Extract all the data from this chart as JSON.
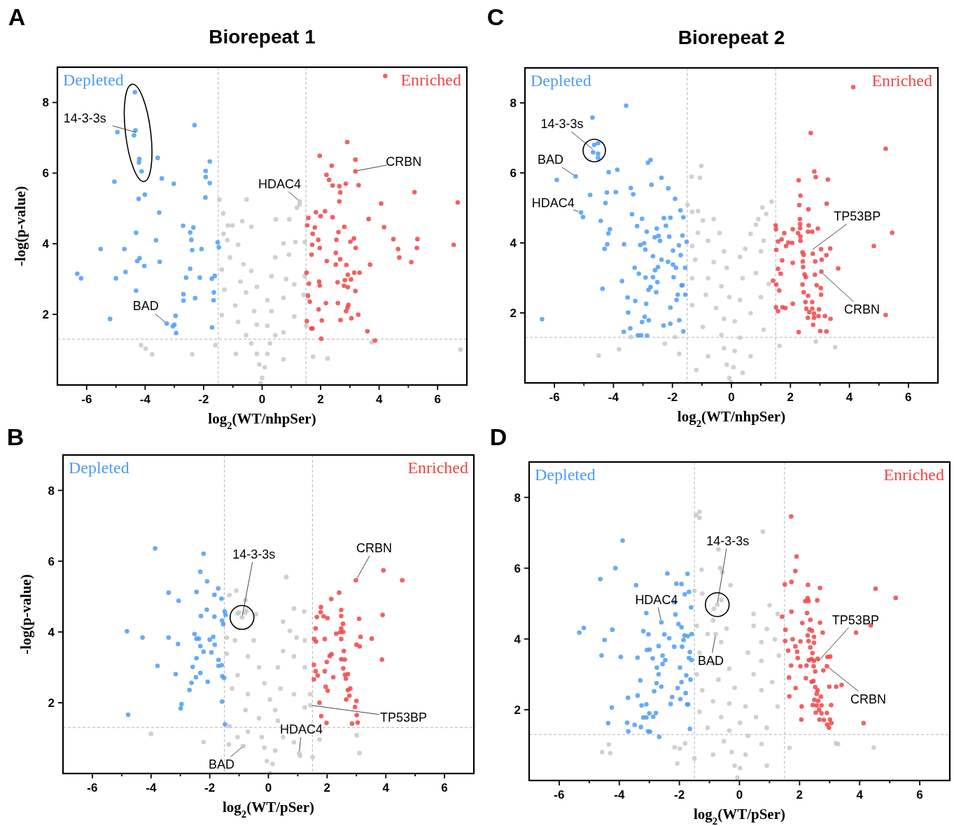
{
  "chart_data": [
    {
      "type": "scatter",
      "title": "Biorepeat 1",
      "xlabel": "log$_{2}$(WT/nhpSer)",
      "ylabel": "-log(p-value)",
      "xlim": [
        -7,
        7
      ],
      "ylim": [
        0,
        9
      ],
      "xticks": [
        -6,
        {
          "value": -5,
          "label": null
        },
        -4,
        {
          "value": -3,
          "label": null
        },
        -2,
        {
          "value": -1,
          "label": null
        },
        0,
        {
          "value": 1,
          "label": null
        },
        2,
        {
          "value": 3,
          "label": null
        },
        4,
        {
          "value": 5,
          "label": null
        },
        6
      ],
      "yticks": [
        2,
        4,
        6,
        8
      ],
      "marker": "circle",
      "ref_lines": [
        {
          "axis": "x",
          "value": -1.5,
          "color": "#b4b4b4",
          "line_style": "dashed"
        },
        {
          "axis": "x",
          "value": 1.5,
          "color": "#b4b4b4",
          "line_style": "dashed"
        },
        {
          "axis": "y",
          "value": 1.3,
          "color": "#b4b4b4",
          "line_style": "dashed"
        }
      ],
      "annotations": [
        "A",
        {
          "text": "14-3-3s",
          "x": -4.24,
          "y": 7.14
        },
        {
          "text": "HDAC4",
          "x": 1.29,
          "y": 5.2
        },
        {
          "text": "CRBN",
          "x": 3.19,
          "y": 6.06
        },
        {
          "text": "BAD",
          "x": -3.26,
          "y": 1.74
        }
      ],
      "series": [
        {
          "color": "#c8c8c8",
          "x": [
            -1.46,
            -0.53,
            1.28,
            1.19,
            -1.33,
            0.47,
            0.93,
            -0.68,
            -1.17,
            -1.02,
            -0.37,
            -1.32,
            -1.19,
            -0.82,
            0.73,
            1.14,
            1.46,
            0.92,
            -1.1,
            -0.64,
            0.45,
            -0.37,
            -1.38,
            0.32,
            0.82,
            1.46,
            -0.74,
            -0.18,
            -1.29,
            -0.55,
            1.42,
            0.18,
            0.73,
            -0.92,
            -0.27,
            0.32,
            -1.38,
            1.1,
            -0.82,
            -0.18,
            0.18,
            0.73,
            -0.55,
            -0.37,
            0.27,
            -0.18,
            0.18,
            -0.1,
            0.09,
            0.0,
            -0.05,
            -0.9,
            0.73,
            -4.14,
            -3.98,
            -3.76,
            -2.39,
            -1.6,
            1.74,
            2.24,
            3.75,
            6.78,
            1.51,
            0.45,
            1.1,
            1.29
          ],
          "values": [
            5.25,
            5.25,
            5.11,
            5.02,
            4.86,
            4.69,
            4.69,
            4.64,
            4.52,
            4.52,
            4.48,
            4.28,
            4.1,
            3.97,
            4.01,
            4.05,
            4.05,
            3.69,
            3.61,
            3.42,
            3.61,
            3.23,
            3.27,
            3.08,
            3.0,
            3.08,
            2.93,
            2.78,
            2.7,
            2.62,
            2.55,
            2.4,
            2.47,
            2.25,
            2.09,
            2.09,
            1.98,
            1.94,
            1.79,
            1.71,
            1.68,
            1.49,
            1.41,
            1.18,
            1.18,
            0.88,
            0.88,
            0.58,
            0.5,
            0.2,
            0.05,
            0.88,
            0.73,
            1.13,
            1.03,
            0.87,
            0.87,
            1.13,
            0.8,
            0.75,
            1.21,
            1.0,
            1.68,
            1.41,
            2.85,
            5.2
          ]
        },
        {
          "name": "Depleted",
          "color": "#4d9cf7",
          "x": [
            -4.35,
            -4.33,
            -4.38,
            -4.95,
            -2.31,
            -4.2,
            -4.21,
            -4.12,
            -3.57,
            -5.05,
            -3.43,
            -3.02,
            -1.79,
            -1.93,
            -1.93,
            -1.79,
            -1.94,
            -4.22,
            -4.01,
            -3.52,
            -2.7,
            -2.35,
            -2.46,
            -2.42,
            -4.31,
            -3.63,
            -5.52,
            -4.71,
            -2.39,
            -2.07,
            -1.52,
            -1.48,
            -4.27,
            -4.19,
            -4.03,
            -3.5,
            -6.32,
            -6.19,
            -5.0,
            -4.67,
            -2.6,
            -2.46,
            -2.13,
            -1.72,
            -1.62,
            -4.31,
            -2.69,
            -2.69,
            -2.29,
            -1.65,
            -1.66,
            -5.2,
            -2.96,
            -3.26,
            -3.05,
            -3.0,
            -2.94,
            -1.71
          ],
          "values": [
            8.29,
            7.21,
            7.07,
            7.16,
            7.36,
            6.4,
            6.3,
            6.05,
            6.43,
            5.76,
            5.85,
            5.7,
            6.33,
            6.06,
            5.89,
            5.72,
            5.31,
            5.27,
            5.39,
            4.88,
            4.51,
            4.46,
            4.32,
            4.11,
            4.31,
            4.1,
            3.85,
            3.85,
            3.82,
            3.85,
            4.04,
            3.9,
            3.51,
            3.59,
            3.37,
            3.49,
            3.15,
            3.02,
            3.02,
            3.2,
            3.04,
            3.29,
            3.04,
            3.01,
            3.09,
            2.67,
            2.57,
            2.39,
            2.46,
            2.62,
            2.4,
            1.87,
            1.96,
            1.74,
            1.66,
            1.71,
            1.47,
            1.63
          ]
        },
        {
          "name": "Enriched",
          "color": "#f04545",
          "x": [
            4.21,
            2.91,
            1.97,
            3.19,
            2.38,
            3.19,
            2.2,
            2.29,
            2.41,
            2.86,
            2.64,
            3.3,
            2.67,
            2.64,
            5.21,
            4.07,
            6.69,
            1.84,
            2.15,
            2.0,
            1.58,
            2.41,
            3.64,
            1.54,
            1.8,
            2.81,
            4.17,
            1.73,
            2.61,
            2.54,
            1.92,
            3.14,
            3.02,
            4.49,
            5.31,
            1.71,
            1.97,
            3.2,
            4.65,
            5.29,
            6.55,
            1.69,
            2.52,
            2.21,
            2.52,
            2.67,
            2.88,
            3.69,
            4.69,
            5.1,
            1.52,
            3.15,
            3.33,
            2.93,
            1.95,
            2.83,
            3.04,
            1.6,
            1.97,
            2.58,
            2.8,
            2.93,
            3.19,
            1.57,
            1.63,
            2.18,
            2.59,
            2.95,
            2.92,
            1.93,
            2.87,
            3.29,
            3.05,
            1.53,
            2.04,
            2.68,
            1.68,
            1.72,
            3.6,
            2.02,
            3.86
          ],
          "values": [
            8.75,
            6.88,
            6.49,
            6.38,
            6.21,
            6.05,
            5.95,
            5.81,
            5.65,
            5.7,
            5.63,
            5.66,
            5.45,
            5.2,
            5.46,
            5.14,
            5.17,
            4.89,
            4.92,
            4.78,
            4.73,
            4.75,
            4.7,
            4.52,
            4.46,
            4.48,
            4.47,
            4.28,
            4.33,
            4.11,
            4.11,
            4.15,
            4.06,
            4.13,
            4.13,
            3.97,
            3.88,
            3.88,
            3.85,
            3.88,
            3.97,
            3.69,
            3.74,
            3.51,
            3.41,
            3.56,
            3.4,
            3.41,
            3.61,
            3.48,
            3.18,
            3.18,
            3.18,
            3.12,
            2.93,
            2.97,
            2.99,
            2.87,
            2.82,
            2.91,
            2.81,
            2.77,
            2.66,
            2.53,
            2.36,
            2.32,
            2.32,
            2.27,
            2.19,
            2.14,
            2.09,
            1.99,
            1.89,
            1.81,
            1.83,
            1.84,
            1.6,
            1.6,
            1.52,
            1.31,
            1.26
          ]
        }
      ]
    },
    {
      "type": "scatter",
      "title": "Biorepeat 2",
      "xlabel": "log$_{2}$(WT/nhpSer)",
      "xlim": [
        -7,
        7
      ],
      "ylim": [
        0,
        9
      ],
      "xticks": [
        -6,
        {
          "value": -5,
          "label": null
        },
        -4,
        {
          "value": -3,
          "label": null
        },
        -2,
        {
          "value": -1,
          "label": null
        },
        0,
        {
          "value": 1,
          "label": null
        },
        2,
        {
          "value": 3,
          "label": null
        },
        4,
        {
          "value": 5,
          "label": null
        },
        6
      ],
      "yticks": [
        2,
        4,
        6,
        8
      ],
      "marker": "circle",
      "ref_lines": [
        {
          "axis": "x",
          "value": -1.5,
          "color": "#b4b4b4",
          "line_style": "dashed"
        },
        {
          "axis": "x",
          "value": 1.5,
          "color": "#b4b4b4",
          "line_style": "dashed"
        },
        {
          "axis": "y",
          "value": 1.3,
          "color": "#b4b4b4",
          "line_style": "dashed"
        }
      ],
      "annotations": [
        "C",
        {
          "text": "14-3-3s",
          "x": -4.65,
          "y": 6.64
        },
        {
          "text": "BAD",
          "x": -5.28,
          "y": 5.9
        },
        {
          "text": "HDAC4",
          "x": -5.12,
          "y": 4.88
        },
        {
          "text": "TP53BP",
          "x": 2.7,
          "y": 3.78
        },
        {
          "text": "CRBN",
          "x": 3.05,
          "y": 3.16
        }
      ],
      "series": [
        {
          "color": "#c8c8c8",
          "x": [
            -1.02,
            -1.35,
            -1.07,
            -1.49,
            -1.33,
            -1.13,
            1.36,
            1.05,
            1.18,
            -0.97,
            -0.6,
            0.91,
            0.83,
            -0.4,
            -1.14,
            0.65,
            1.09,
            -0.79,
            -1.33,
            -0.25,
            0.47,
            0.29,
            1.0,
            -1.23,
            -0.6,
            -0.16,
            -1.33,
            0.38,
            0.83,
            -0.79,
            1.27,
            -0.34,
            -0.87,
            -0.07,
            0.29,
            1.0,
            -1.33,
            -0.52,
            0.65,
            -0.25,
            0.11,
            -0.97,
            1.09,
            -0.34,
            0.29,
            -0.25,
            0.11,
            -0.79,
            0.65,
            -0.16,
            0.07,
            -0.07,
            -0.02,
            -1.19,
            0.38,
            -4.5,
            -3.81,
            -2.26,
            -1.77,
            -1.91,
            2.86,
            3.52,
            1.63,
            -3.41
          ],
          "values": [
            6.2,
            5.89,
            5.86,
            5.09,
            4.89,
            4.91,
            5.18,
            5.01,
            4.83,
            4.64,
            4.68,
            4.68,
            4.52,
            4.28,
            4.29,
            4.26,
            4.06,
            4.06,
            3.91,
            3.76,
            3.83,
            3.6,
            3.76,
            3.52,
            3.45,
            3.29,
            2.99,
            2.99,
            3.14,
            2.99,
            2.83,
            2.76,
            2.52,
            2.45,
            2.37,
            2.45,
            2.22,
            2.14,
            1.99,
            1.83,
            1.76,
            1.6,
            1.52,
            1.37,
            1.29,
            0.99,
            0.91,
            0.76,
            0.76,
            0.52,
            0.45,
            0.14,
            0.02,
            0.37,
            0.29,
            0.78,
            0.96,
            1.12,
            0.83,
            1.31,
            1.18,
            1.02,
            1.06,
            1.31
          ]
        },
        {
          "name": "Depleted",
          "color": "#4d9cf7",
          "x": [
            -3.57,
            -4.71,
            -4.65,
            -4.52,
            -4.69,
            -4.52,
            -4.52,
            -2.83,
            -2.74,
            -4.16,
            -3.87,
            -5.92,
            -5.28,
            -2.37,
            -2.71,
            -3.41,
            -2.14,
            -4.79,
            -4.22,
            -3.92,
            -3.33,
            -1.91,
            -4.27,
            -5.1,
            -5.03,
            -4.43,
            -3.37,
            -3.03,
            -2.29,
            -2.07,
            -1.73,
            -1.63,
            -3.2,
            -2.22,
            -2.53,
            -4.12,
            -4.17,
            -2.87,
            -2.47,
            -2.6,
            -2.11,
            -1.66,
            -4.21,
            -3.64,
            -4.3,
            -3.09,
            -2.96,
            -2.92,
            -2.42,
            -1.78,
            -1.98,
            -1.72,
            -1.52,
            -2.66,
            -2.37,
            -2.15,
            -1.98,
            -1.88,
            -1.57,
            -3.28,
            -2.59,
            -2.49,
            -3.14,
            -2.91,
            -2.66,
            -1.96,
            -3.71,
            -2.51,
            -2.74,
            -1.69,
            -1.66,
            -4.37,
            -2.81,
            -2.55,
            -1.82,
            -1.56,
            -3.52,
            -1.86,
            -3.26,
            -2.89,
            -2.07,
            -3.5,
            -2.94,
            -6.42,
            -3.03,
            -2.8,
            -2.3,
            -2.07,
            -1.77,
            -3.43,
            -3.65,
            -1.63,
            -3.17,
            -3.06,
            -2.86
          ],
          "values": [
            7.92,
            7.58,
            6.8,
            6.85,
            6.59,
            6.55,
            6.43,
            6.29,
            6.37,
            6.02,
            6.09,
            5.8,
            5.9,
            5.86,
            5.66,
            5.57,
            5.56,
            5.37,
            5.44,
            5.45,
            5.39,
            5.26,
            5.14,
            4.87,
            4.74,
            4.63,
            4.82,
            4.69,
            4.71,
            4.72,
            4.93,
            4.73,
            4.48,
            4.49,
            4.41,
            4.39,
            4.27,
            4.32,
            4.2,
            4.16,
            4.18,
            4.21,
            3.96,
            3.96,
            3.83,
            3.94,
            3.99,
            3.81,
            4.06,
            3.93,
            3.78,
            3.65,
            4.03,
            3.62,
            3.52,
            3.46,
            3.38,
            3.29,
            3.29,
            3.29,
            3.22,
            3.31,
            3.12,
            3.01,
            3.02,
            3.02,
            2.91,
            2.88,
            2.74,
            2.79,
            2.79,
            2.69,
            2.66,
            2.59,
            2.52,
            2.52,
            2.44,
            2.37,
            2.34,
            2.26,
            2.15,
            2.01,
            1.89,
            1.82,
            1.74,
            1.79,
            1.64,
            1.69,
            1.79,
            1.56,
            1.46,
            1.47,
            1.36,
            1.36,
            1.35
          ]
        },
        {
          "name": "Enriched",
          "color": "#f04545",
          "x": [
            4.13,
            2.69,
            5.23,
            2.81,
            2.86,
            2.28,
            3.27,
            2.34,
            2.61,
            3.23,
            2.3,
            2.32,
            2.33,
            2.33,
            2.62,
            2.93,
            1.5,
            1.51,
            1.79,
            2.08,
            2.6,
            2.74,
            5.45,
            2.26,
            2.34,
            2.34,
            1.58,
            1.7,
            1.85,
            1.93,
            2.06,
            1.52,
            2.41,
            2.45,
            2.76,
            3.04,
            3.35,
            3.22,
            4.83,
            1.72,
            2.08,
            2.42,
            2.84,
            3.06,
            1.58,
            1.67,
            2.43,
            2.48,
            2.83,
            3.05,
            3.62,
            1.41,
            1.52,
            2.41,
            2.52,
            2.89,
            3.03,
            1.62,
            2.45,
            2.6,
            3.04,
            2.51,
            2.74,
            2.08,
            1.51,
            1.73,
            1.83,
            2.54,
            2.74,
            2.97,
            1.58,
            2.64,
            2.8,
            2.95,
            2.59,
            2.8,
            3.17,
            3.36,
            5.23,
            2.77,
            2.28,
            3.01,
            3.22
          ],
          "values": [
            8.45,
            7.14,
            6.69,
            6.04,
            5.88,
            5.79,
            5.81,
            5.35,
            4.96,
            5.12,
            5.08,
            4.68,
            4.54,
            4.42,
            4.5,
            4.41,
            4.5,
            4.39,
            4.28,
            4.39,
            4.32,
            4.32,
            4.29,
            4.28,
            4.18,
            4.06,
            4.04,
            4.1,
            3.91,
            4.01,
            4.0,
            3.8,
            3.73,
            3.66,
            3.69,
            3.82,
            3.84,
            3.65,
            3.91,
            3.5,
            3.43,
            3.47,
            3.47,
            3.52,
            3.26,
            3.12,
            3.31,
            3.1,
            3.09,
            3.18,
            3.27,
            2.92,
            2.81,
            2.81,
            3.02,
            2.79,
            2.71,
            2.64,
            2.59,
            2.49,
            2.52,
            2.31,
            2.31,
            2.26,
            2.16,
            2.16,
            2.14,
            2.12,
            2.12,
            2.1,
            2.05,
            2.02,
            1.98,
            1.91,
            1.86,
            1.86,
            1.91,
            1.83,
            1.94,
            1.66,
            1.45,
            1.48,
            1.47
          ]
        }
      ]
    },
    {
      "type": "scatter",
      "xlabel": "log$_{2}$(WT/pSer)",
      "ylabel": "-log(p-value)",
      "xlim": [
        -7,
        7
      ],
      "ylim": [
        0,
        9
      ],
      "xticks": [
        -6,
        {
          "value": -5,
          "label": null
        },
        -4,
        {
          "value": -3,
          "label": null
        },
        -2,
        {
          "value": -1,
          "label": null
        },
        0,
        {
          "value": 1,
          "label": null
        },
        2,
        {
          "value": 3,
          "label": null
        },
        4,
        {
          "value": 5,
          "label": null
        },
        6
      ],
      "yticks": [
        2,
        4,
        6,
        8
      ],
      "marker": "circle",
      "ref_lines": [
        {
          "axis": "x",
          "value": -1.5,
          "color": "#b4b4b4",
          "line_style": "dashed"
        },
        {
          "axis": "x",
          "value": 1.5,
          "color": "#b4b4b4",
          "line_style": "dashed"
        },
        {
          "axis": "y",
          "value": 1.3,
          "color": "#b4b4b4",
          "line_style": "dashed"
        }
      ],
      "annotations": [
        "B",
        {
          "text": "14-3-3s",
          "x": -0.9,
          "y": 4.41
        },
        {
          "text": "CRBN",
          "x": 2.98,
          "y": 5.46
        },
        {
          "text": "TP53BP",
          "x": 1.43,
          "y": 1.93
        },
        {
          "text": "HDAC4",
          "x": 1.05,
          "y": 0.57
        },
        {
          "text": "BAD",
          "x": -0.86,
          "y": 0.77
        }
      ],
      "series": [
        {
          "color": "#c8c8c8",
          "x": [
            0.61,
            -1.09,
            -1.33,
            -0.78,
            -1.05,
            -0.8,
            -0.43,
            0.87,
            1.22,
            0.5,
            0.73,
            -1.42,
            -1.14,
            -0.5,
            1.24,
            0.96,
            -0.7,
            0.5,
            0.87,
            -1.42,
            -0.32,
            0.32,
            -1.05,
            1.24,
            -0.14,
            -1.24,
            -0.7,
            0.41,
            0.87,
            1.42,
            0.05,
            -0.78,
            0.23,
            1.24,
            -0.32,
            0.32,
            -1.05,
            -0.7,
            -0.23,
            0.5,
            -0.14,
            0.23,
            0.87,
            -0.87,
            1.08,
            -0.05,
            0.14,
            0.05,
            -4.0,
            -2.21,
            -1.35,
            1.51,
            3.01,
            3.1,
            1.74,
            -1.33,
            1.43,
            -0.9,
            -1.0,
            -0.75,
            1.05,
            -0.86
          ],
          "values": [
            5.55,
            5.17,
            5.04,
            4.9,
            4.52,
            4.54,
            4.5,
            4.66,
            4.58,
            4.29,
            4.03,
            3.84,
            3.76,
            3.76,
            3.76,
            3.84,
            3.31,
            3.46,
            3.31,
            3.38,
            3.0,
            3.0,
            2.78,
            3.0,
            2.55,
            2.4,
            2.24,
            2.4,
            2.24,
            2.24,
            2.09,
            1.79,
            1.79,
            1.87,
            1.56,
            1.49,
            1.03,
            1.18,
            1.03,
            1.03,
            0.73,
            0.65,
            0.88,
            0.77,
            0.5,
            0.35,
            0.27,
            0.01,
            1.12,
            0.89,
            0.82,
            0.46,
            1.08,
            0.58,
            0.96,
            1.34,
            1.93,
            4.41,
            4.55,
            4.6,
            0.57,
            0.77
          ]
        },
        {
          "name": "Depleted",
          "color": "#4d9cf7",
          "x": [
            -3.86,
            -2.21,
            -2.32,
            -2.09,
            -3.4,
            -2.45,
            -1.71,
            -1.84,
            -1.6,
            -3.06,
            -2.1,
            -1.49,
            -1.46,
            -2.3,
            -1.84,
            -1.58,
            -1.54,
            -4.82,
            -4.29,
            -3.4,
            -2.52,
            -2.45,
            -2.37,
            -2.0,
            -1.88,
            -3.08,
            -2.32,
            -1.83,
            -2.21,
            -1.94,
            -1.7,
            -1.59,
            -1.7,
            -2.45,
            -3.78,
            -2.58,
            -3.16,
            -2.32,
            -2.47,
            -1.57,
            -1.51,
            -2.07,
            -2.62,
            -2.69,
            -1.58,
            -2.96,
            -2.99,
            -4.78,
            -1.48
          ],
          "values": [
            6.36,
            6.21,
            5.7,
            5.43,
            5.11,
            5.13,
            5.23,
            5.05,
            4.94,
            4.88,
            4.63,
            4.58,
            4.48,
            4.45,
            4.43,
            4.32,
            4.22,
            4.02,
            3.84,
            3.84,
            3.94,
            3.81,
            3.81,
            3.78,
            3.86,
            3.66,
            3.6,
            3.64,
            3.44,
            3.42,
            3.21,
            3.06,
            3.04,
            3.26,
            3.04,
            3.01,
            2.81,
            2.84,
            2.72,
            2.75,
            2.7,
            2.59,
            2.56,
            2.36,
            2.03,
            1.96,
            1.84,
            1.66,
            1.39
          ]
        },
        {
          "name": "Enriched",
          "color": "#f04545",
          "x": [
            3.92,
            4.56,
            2.98,
            2.41,
            2.14,
            2.48,
            2.48,
            1.79,
            1.78,
            1.65,
            1.88,
            2.01,
            3.89,
            3.09,
            2.54,
            1.61,
            2.48,
            2.45,
            2.55,
            2.31,
            3.14,
            3.52,
            1.92,
            1.56,
            1.62,
            2.48,
            3.0,
            3.11,
            2.57,
            2.15,
            2.09,
            1.99,
            2.48,
            2.6,
            3.87,
            1.55,
            1.61,
            1.92,
            2.55,
            2.61,
            2.71,
            2.64,
            2.21,
            1.55,
            1.68,
            1.95,
            2.71,
            2.79,
            2.02,
            2.76,
            2.65,
            3.0,
            1.74,
            2.95,
            3.01,
            1.8,
            1.98,
            2.85,
            3.04
          ],
          "values": [
            5.74,
            5.46,
            5.46,
            5.11,
            4.93,
            4.62,
            4.45,
            4.7,
            4.56,
            4.42,
            4.44,
            4.39,
            4.48,
            4.37,
            4.23,
            4.1,
            4.1,
            3.99,
            4.0,
            3.95,
            3.86,
            3.81,
            3.8,
            3.8,
            3.73,
            3.8,
            3.64,
            3.59,
            3.46,
            3.37,
            3.32,
            3.15,
            3.23,
            3.22,
            3.22,
            3.07,
            2.89,
            2.89,
            2.97,
            2.79,
            2.81,
            2.68,
            2.72,
            2.66,
            2.77,
            2.45,
            2.36,
            2.4,
            2.34,
            2.2,
            2.09,
            2.05,
            2.0,
            1.88,
            1.65,
            1.62,
            1.43,
            1.41,
            1.44
          ]
        }
      ]
    },
    {
      "type": "scatter",
      "xlabel": "log$_{2}$(WT/pSer)",
      "xlim": [
        -7,
        7
      ],
      "ylim": [
        0,
        9
      ],
      "xticks": [
        -6,
        {
          "value": -5,
          "label": null
        },
        -4,
        {
          "value": -3,
          "label": null
        },
        -2,
        {
          "value": -1,
          "label": null
        },
        0,
        {
          "value": 1,
          "label": null
        },
        2,
        {
          "value": 3,
          "label": null
        },
        4,
        {
          "value": 5,
          "label": null
        },
        6
      ],
      "yticks": [
        2,
        4,
        6,
        8
      ],
      "marker": "circle",
      "ref_lines": [
        {
          "axis": "x",
          "value": -1.5,
          "color": "#b4b4b4",
          "line_style": "dashed"
        },
        {
          "axis": "x",
          "value": 1.5,
          "color": "#b4b4b4",
          "line_style": "dashed"
        },
        {
          "axis": "y",
          "value": 1.3,
          "color": "#b4b4b4",
          "line_style": "dashed"
        }
      ],
      "annotations": [
        "D",
        {
          "text": "14-3-3s",
          "x": -0.74,
          "y": 4.97
        },
        {
          "text": "HDAC4",
          "x": -2.6,
          "y": 4.48
        },
        {
          "text": "BAD",
          "x": -0.79,
          "y": 4.14
        },
        {
          "text": "TP53BP",
          "x": 2.56,
          "y": 3.31
        },
        {
          "text": "CRBN",
          "x": 2.91,
          "y": 3.23
        }
      ],
      "series": [
        {
          "color": "#c8c8c8",
          "x": [
            -1.44,
            -1.33,
            -1.33,
            0.78,
            -0.7,
            -1.26,
            -0.64,
            -0.57,
            -0.3,
            1.0,
            -1.5,
            -1.24,
            1.27,
            0.47,
            0.47,
            0.91,
            -1.42,
            -0.88,
            -0.43,
            -1.06,
            -0.61,
            0.73,
            1.18,
            1.31,
            0.28,
            -1.33,
            -0.88,
            -0.34,
            0.73,
            -1.42,
            -0.7,
            0.47,
            1.09,
            -0.16,
            -1.24,
            0.73,
            -0.88,
            -0.34,
            0.2,
            1.27,
            -1.33,
            -0.61,
            0.55,
            0.02,
            -0.34,
            -1.06,
            0.91,
            0.28,
            -0.52,
            0.73,
            -0.26,
            0.2,
            -0.88,
            -0.16,
            0.02,
            -0.07,
            0.91,
            -1.5,
            -4.57,
            -4.35,
            -4.3,
            -2.16,
            -1.99,
            -1.81,
            -2.07,
            3.21,
            3.28,
            4.47,
            1.67,
            -0.74,
            -0.6,
            -0.85,
            -0.79
          ],
          "values": [
            7.5,
            7.59,
            7.42,
            7.03,
            6.53,
            5.96,
            6.0,
            5.89,
            5.52,
            4.95,
            5.36,
            5.28,
            4.71,
            4.71,
            4.37,
            4.28,
            4.37,
            4.52,
            4.29,
            4.14,
            3.91,
            3.91,
            3.99,
            3.53,
            3.61,
            3.61,
            3.31,
            3.16,
            3.38,
            3.0,
            2.85,
            3.0,
            2.78,
            2.62,
            2.55,
            2.55,
            2.24,
            2.17,
            2.09,
            2.09,
            1.94,
            1.79,
            1.79,
            1.63,
            1.41,
            1.49,
            1.49,
            1.26,
            1.11,
            1.03,
            0.8,
            0.73,
            0.73,
            0.42,
            0.35,
            0.08,
            0.42,
            0.62,
            0.8,
            1.02,
            0.77,
            0.94,
            0.9,
            1.05,
            0.48,
            1.05,
            1.03,
            0.93,
            0.92,
            4.97,
            5.1,
            4.85,
            4.14
          ]
        },
        {
          "name": "Depleted",
          "color": "#4d9cf7",
          "x": [
            -3.89,
            -4.13,
            -4.63,
            -2.4,
            -1.73,
            -3.44,
            -2.1,
            -1.93,
            -1.68,
            -1.82,
            -2.17,
            -3.1,
            -1.61,
            -2.13,
            -2.6,
            -2.03,
            -1.93,
            -5.33,
            -5.18,
            -4.23,
            -3.2,
            -3.03,
            -2.5,
            -2.34,
            -1.83,
            -1.72,
            -1.59,
            -4.49,
            -2.69,
            -1.91,
            -1.86,
            -3.08,
            -2.99,
            -2.17,
            -1.65,
            -4.59,
            -3.95,
            -3.39,
            -2.89,
            -2.56,
            -2.47,
            -1.68,
            -1.59,
            -2.75,
            -2.56,
            -1.98,
            -2.69,
            -1.77,
            -1.63,
            -3.3,
            -1.93,
            -2.76,
            -2.6,
            -2.06,
            -2.84,
            -1.79,
            -3.71,
            -3.39,
            -2.24,
            -1.97,
            -2.29,
            -1.74,
            -1.71,
            -3.26,
            -3.1,
            -4.25,
            -2.78,
            -3.0,
            -3.2,
            -3.1,
            -2.87,
            -4.37,
            -3.74,
            -3.49,
            -3.28,
            -3.7,
            -3.04,
            -2.98,
            -1.65,
            -2.67
          ],
          "values": [
            6.78,
            6.0,
            5.69,
            5.85,
            5.84,
            5.52,
            5.56,
            5.55,
            5.33,
            5.26,
            5.04,
            4.73,
            4.89,
            4.69,
            4.47,
            4.42,
            4.33,
            4.18,
            4.31,
            4.26,
            4.22,
            4.13,
            4.13,
            4.02,
            4.1,
            4.08,
            4.14,
            3.97,
            3.8,
            3.78,
            3.97,
            3.69,
            3.7,
            3.78,
            3.63,
            3.53,
            3.49,
            3.47,
            3.45,
            3.53,
            3.4,
            3.46,
            3.4,
            3.19,
            3.29,
            3.19,
            3.0,
            2.97,
            2.85,
            2.83,
            2.78,
            2.75,
            2.65,
            2.61,
            2.52,
            2.47,
            2.34,
            2.4,
            2.36,
            2.3,
            2.16,
            2.15,
            2.15,
            2.12,
            2.15,
            2.06,
            1.91,
            1.9,
            1.78,
            1.78,
            1.8,
            1.62,
            1.63,
            1.57,
            1.51,
            1.39,
            1.39,
            1.38,
            1.46,
            1.23
          ]
        },
        {
          "name": "Enriched",
          "color": "#f04545",
          "x": [
            1.72,
            1.9,
            1.86,
            1.51,
            1.73,
            2.28,
            2.68,
            4.53,
            5.2,
            2.27,
            2.19,
            2.59,
            2.3,
            1.73,
            1.42,
            2.25,
            2.36,
            2.09,
            2.68,
            4.37,
            1.53,
            2.33,
            2.41,
            3.88,
            2.27,
            2.48,
            2.77,
            1.52,
            1.77,
            2.03,
            2.3,
            2.48,
            1.86,
            2.36,
            1.62,
            1.92,
            2.43,
            1.94,
            2.31,
            2.4,
            2.48,
            2.6,
            2.93,
            3.02,
            1.72,
            2.03,
            2.23,
            2.47,
            2.52,
            2.79,
            2.91,
            1.65,
            2.21,
            2.4,
            2.46,
            2.52,
            1.87,
            2.99,
            3.22,
            3.4,
            2.6,
            1.66,
            2.57,
            2.71,
            2.49,
            2.62,
            2.44,
            2.57,
            2.73,
            3.05,
            2.07,
            2.65,
            2.54,
            2.73,
            2.91,
            2.06,
            2.66,
            2.81,
            3.01,
            4.13,
            2.92,
            3.06,
            2.98
          ],
          "values": [
            7.46,
            6.33,
            5.92,
            5.54,
            5.61,
            5.53,
            5.44,
            5.42,
            5.16,
            5.15,
            5.07,
            5.09,
            5.07,
            4.77,
            4.63,
            4.73,
            4.54,
            4.45,
            4.46,
            4.38,
            4.26,
            4.27,
            4.23,
            4.18,
            4.1,
            4.06,
            4.18,
            3.94,
            3.99,
            3.93,
            3.94,
            3.89,
            3.79,
            3.76,
            3.67,
            3.64,
            3.6,
            3.46,
            3.4,
            3.43,
            3.38,
            3.44,
            3.49,
            3.5,
            3.25,
            3.23,
            3.25,
            3.23,
            3.08,
            3.11,
            3.23,
            2.91,
            2.89,
            2.79,
            2.81,
            2.64,
            2.61,
            2.65,
            2.65,
            2.7,
            2.55,
            2.38,
            2.45,
            2.37,
            2.28,
            2.25,
            2.13,
            2.12,
            2.12,
            2.13,
            2.09,
            2.0,
            1.92,
            1.9,
            1.91,
            1.72,
            1.72,
            1.71,
            1.72,
            1.62,
            1.58,
            1.62,
            1.49
          ]
        }
      ]
    }
  ]
}
